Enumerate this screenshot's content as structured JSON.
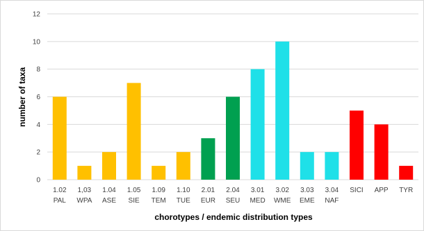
{
  "chart_data": {
    "type": "bar",
    "xlabel": "chorotypes / endemic distribution types",
    "ylabel": "number of taxa",
    "ylim": [
      0,
      12
    ],
    "yticks": [
      0,
      2,
      4,
      6,
      8,
      10,
      12
    ],
    "grid": "horizontal",
    "legend": "none",
    "categories": [
      {
        "code": "1.02",
        "abbr": "PAL",
        "value": 6,
        "color": "#FFC000"
      },
      {
        "code": "1,03",
        "abbr": "WPA",
        "value": 1,
        "color": "#FFC000"
      },
      {
        "code": "1.04",
        "abbr": "ASE",
        "value": 2,
        "color": "#FFC000"
      },
      {
        "code": "1.05",
        "abbr": "SIE",
        "value": 7,
        "color": "#FFC000"
      },
      {
        "code": "1.09",
        "abbr": "TEM",
        "value": 1,
        "color": "#FFC000"
      },
      {
        "code": "1.10",
        "abbr": "TUE",
        "value": 2,
        "color": "#FFC000"
      },
      {
        "code": "2.01",
        "abbr": "EUR",
        "value": 3,
        "color": "#00A050"
      },
      {
        "code": "2.04",
        "abbr": "SEU",
        "value": 6,
        "color": "#00A050"
      },
      {
        "code": "3.01",
        "abbr": "MED",
        "value": 8,
        "color": "#1FE0E8"
      },
      {
        "code": "3.02",
        "abbr": "WME",
        "value": 10,
        "color": "#1FE0E8"
      },
      {
        "code": "3.03",
        "abbr": "EME",
        "value": 2,
        "color": "#1FE0E8"
      },
      {
        "code": "3.04",
        "abbr": "NAF",
        "value": 2,
        "color": "#1FE0E8"
      },
      {
        "code": "",
        "abbr": "SICI",
        "value": 5,
        "color": "#FF0000"
      },
      {
        "code": "",
        "abbr": "APP",
        "value": 4,
        "color": "#FF0000"
      },
      {
        "code": "",
        "abbr": "TYR",
        "value": 1,
        "color": "#FF0000"
      }
    ]
  }
}
